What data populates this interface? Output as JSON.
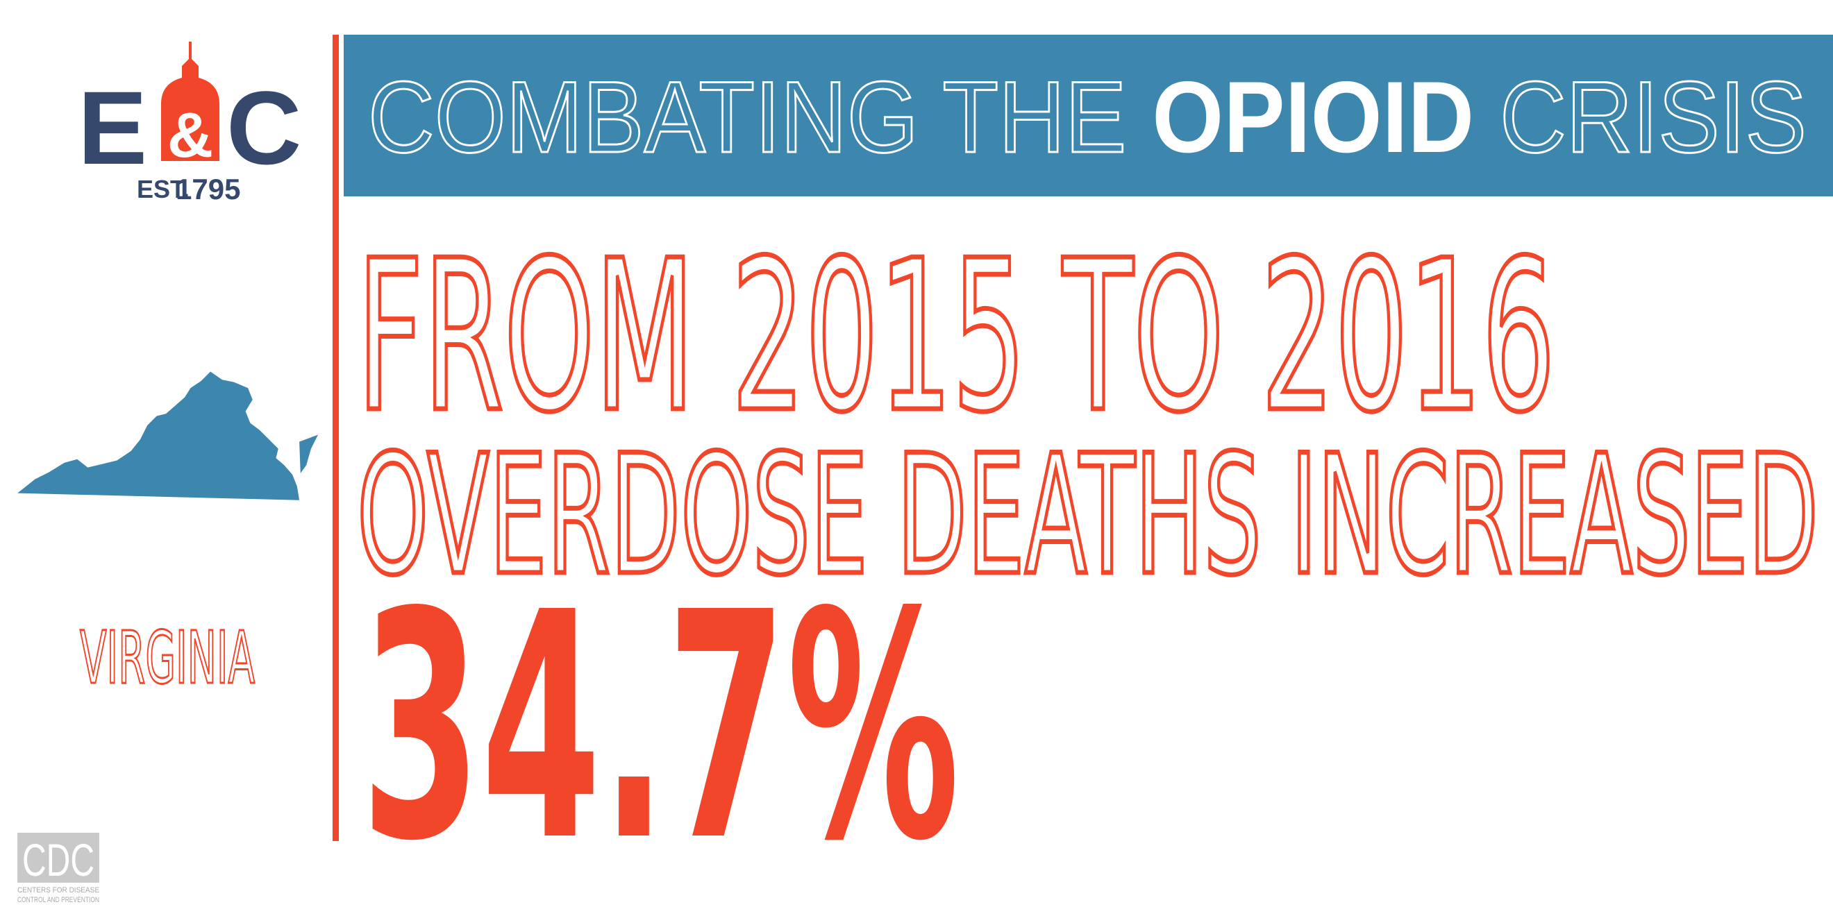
{
  "logo": {
    "left": "E",
    "amp": "&",
    "right": "C",
    "est": "EST.",
    "year": "1795"
  },
  "header": {
    "lead": "COMBATING THE ",
    "emphasis": "OPIOID",
    "tail": " CRISIS"
  },
  "headline": {
    "line1": "FROM 2015 TO 2016",
    "line2": "OVERDOSE DEATHS INCREASED",
    "statistic": "34.7%"
  },
  "state": "VIRGINIA",
  "source": {
    "abbr": "CDC",
    "line1": "CENTERS FOR DISEASE",
    "line2": "CONTROL AND PREVENTION"
  }
}
